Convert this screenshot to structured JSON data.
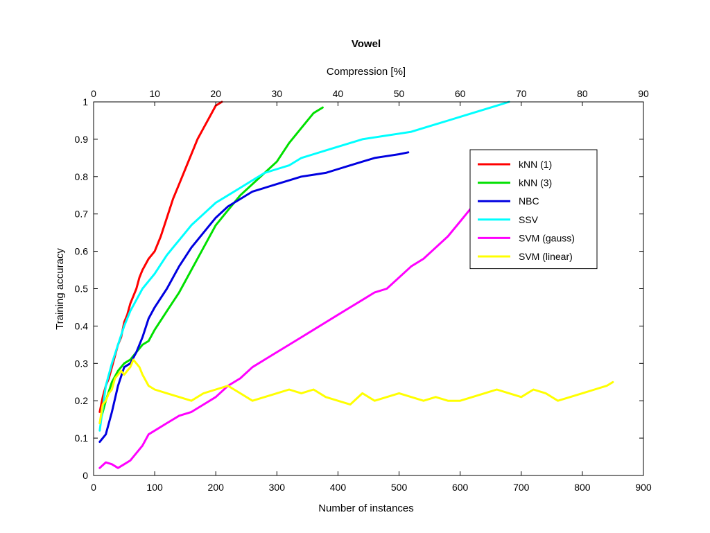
{
  "chart_data": {
    "type": "line",
    "title": "Vowel",
    "xlabel": "Number of instances",
    "ylabel": "Training accuracy",
    "top_xlabel": "Compression [%]",
    "xlim": [
      0,
      900
    ],
    "ylim": [
      0,
      1
    ],
    "top_xlim": [
      0,
      90
    ],
    "xticks": [
      "0",
      "100",
      "200",
      "300",
      "400",
      "500",
      "600",
      "700",
      "800",
      "900"
    ],
    "top_xticks": [
      "0",
      "10",
      "20",
      "30",
      "40",
      "50",
      "60",
      "70",
      "80",
      "90"
    ],
    "yticks": [
      "0",
      "0.1",
      "0.2",
      "0.3",
      "0.4",
      "0.5",
      "0.6",
      "0.7",
      "0.8",
      "0.9",
      "1"
    ],
    "grid": false,
    "legend_position": "right",
    "series": [
      {
        "name": "kNN (1)",
        "color": "#ff0000",
        "x": [
          10,
          15,
          20,
          25,
          30,
          35,
          40,
          45,
          50,
          55,
          60,
          65,
          70,
          75,
          80,
          90,
          100,
          110,
          120,
          130,
          140,
          150,
          160,
          170,
          180,
          190,
          200,
          210
        ],
        "y": [
          0.17,
          0.21,
          0.24,
          0.26,
          0.29,
          0.32,
          0.35,
          0.37,
          0.41,
          0.43,
          0.46,
          0.48,
          0.5,
          0.53,
          0.55,
          0.58,
          0.6,
          0.64,
          0.69,
          0.74,
          0.78,
          0.82,
          0.86,
          0.9,
          0.93,
          0.96,
          0.99,
          1.0
        ]
      },
      {
        "name": "kNN (3)",
        "color": "#00e000",
        "x": [
          10,
          20,
          30,
          40,
          50,
          60,
          70,
          80,
          90,
          100,
          120,
          140,
          160,
          180,
          200,
          220,
          240,
          260,
          280,
          300,
          320,
          340,
          360,
          375
        ],
        "y": [
          0.14,
          0.2,
          0.25,
          0.28,
          0.3,
          0.31,
          0.33,
          0.35,
          0.36,
          0.39,
          0.44,
          0.49,
          0.55,
          0.61,
          0.67,
          0.71,
          0.75,
          0.78,
          0.81,
          0.84,
          0.89,
          0.93,
          0.97,
          0.985
        ]
      },
      {
        "name": "NBC",
        "color": "#0000e0",
        "x": [
          10,
          20,
          30,
          40,
          50,
          60,
          70,
          80,
          90,
          100,
          120,
          140,
          160,
          180,
          200,
          220,
          240,
          260,
          280,
          300,
          320,
          340,
          360,
          380,
          400,
          420,
          440,
          460,
          480,
          500,
          515
        ],
        "y": [
          0.09,
          0.11,
          0.17,
          0.24,
          0.29,
          0.3,
          0.33,
          0.37,
          0.42,
          0.45,
          0.5,
          0.56,
          0.61,
          0.65,
          0.69,
          0.72,
          0.74,
          0.76,
          0.77,
          0.78,
          0.79,
          0.8,
          0.805,
          0.81,
          0.82,
          0.83,
          0.84,
          0.85,
          0.855,
          0.86,
          0.865
        ]
      },
      {
        "name": "SSV",
        "color": "#00ffff",
        "x": [
          10,
          20,
          30,
          40,
          50,
          60,
          70,
          80,
          90,
          100,
          120,
          140,
          160,
          180,
          200,
          220,
          240,
          260,
          280,
          300,
          320,
          340,
          360,
          380,
          400,
          420,
          440,
          460,
          480,
          500,
          520,
          540,
          560,
          580,
          600,
          620,
          640,
          660,
          680
        ],
        "y": [
          0.12,
          0.24,
          0.3,
          0.35,
          0.4,
          0.44,
          0.47,
          0.5,
          0.52,
          0.54,
          0.59,
          0.63,
          0.67,
          0.7,
          0.73,
          0.75,
          0.77,
          0.79,
          0.81,
          0.82,
          0.83,
          0.85,
          0.86,
          0.87,
          0.88,
          0.89,
          0.9,
          0.905,
          0.91,
          0.915,
          0.92,
          0.93,
          0.94,
          0.95,
          0.96,
          0.97,
          0.98,
          0.99,
          1.0
        ]
      },
      {
        "name": "SVM (gauss)",
        "color": "#ff00ff",
        "x": [
          10,
          20,
          30,
          40,
          50,
          60,
          70,
          80,
          90,
          100,
          120,
          140,
          160,
          180,
          200,
          220,
          240,
          260,
          280,
          300,
          320,
          340,
          360,
          380,
          400,
          420,
          440,
          460,
          480,
          500,
          520,
          540,
          560,
          580,
          600,
          620
        ],
        "y": [
          0.02,
          0.035,
          0.03,
          0.02,
          0.03,
          0.04,
          0.06,
          0.08,
          0.11,
          0.12,
          0.14,
          0.16,
          0.17,
          0.19,
          0.21,
          0.24,
          0.26,
          0.29,
          0.31,
          0.33,
          0.35,
          0.37,
          0.39,
          0.41,
          0.43,
          0.45,
          0.47,
          0.49,
          0.5,
          0.53,
          0.56,
          0.58,
          0.61,
          0.64,
          0.68,
          0.72
        ]
      },
      {
        "name": "SVM (linear)",
        "color": "#ffff00",
        "x": [
          10,
          15,
          20,
          25,
          30,
          35,
          40,
          45,
          50,
          55,
          60,
          65,
          70,
          75,
          80,
          90,
          100,
          120,
          140,
          160,
          180,
          200,
          220,
          240,
          260,
          280,
          300,
          320,
          340,
          360,
          380,
          400,
          420,
          440,
          460,
          480,
          500,
          520,
          540,
          560,
          580,
          600,
          620,
          640,
          660,
          680,
          700,
          720,
          740,
          760,
          780,
          800,
          820,
          840,
          850
        ],
        "y": [
          0.14,
          0.19,
          0.2,
          0.22,
          0.23,
          0.26,
          0.27,
          0.28,
          0.27,
          0.28,
          0.29,
          0.31,
          0.3,
          0.29,
          0.27,
          0.24,
          0.23,
          0.22,
          0.21,
          0.2,
          0.22,
          0.23,
          0.24,
          0.22,
          0.2,
          0.21,
          0.22,
          0.23,
          0.22,
          0.23,
          0.21,
          0.2,
          0.19,
          0.22,
          0.2,
          0.21,
          0.22,
          0.21,
          0.2,
          0.21,
          0.2,
          0.2,
          0.21,
          0.22,
          0.23,
          0.22,
          0.21,
          0.23,
          0.22,
          0.2,
          0.21,
          0.22,
          0.23,
          0.24,
          0.25
        ]
      }
    ]
  }
}
